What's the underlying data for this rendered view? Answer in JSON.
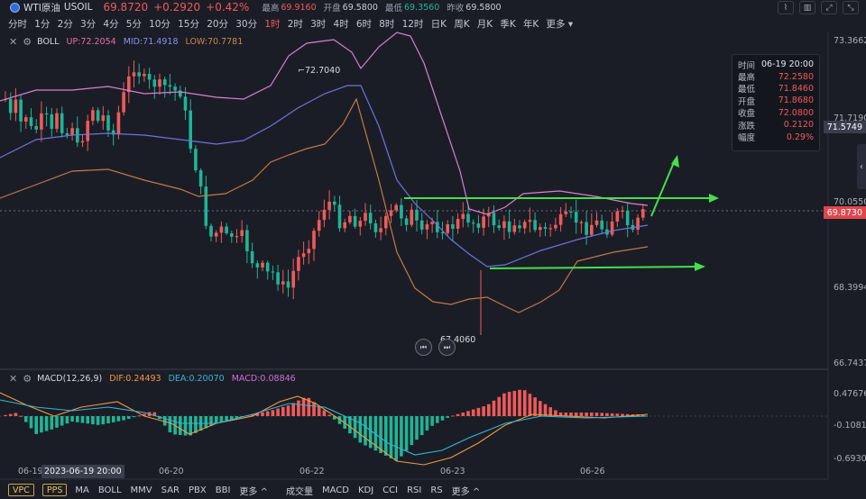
{
  "header": {
    "symbol_name": "WTI原油",
    "symbol_code": "USOIL",
    "price": "69.8720",
    "change": "+0.2920",
    "change_pct": "+0.42%",
    "stats": [
      {
        "label": "最高",
        "value": "69.9160",
        "dir": "up"
      },
      {
        "label": "开盘",
        "value": "69.5800",
        "dir": "flat"
      },
      {
        "label": "最低",
        "value": "69.3560",
        "dir": "dn"
      },
      {
        "label": "昨收",
        "value": "69.5800",
        "dir": "flat"
      }
    ],
    "icons": [
      "chart-type-icon",
      "candle-settings-icon",
      "fullscreen-icon",
      "collapse-icon"
    ]
  },
  "periods": [
    "分时",
    "1分",
    "2分",
    "3分",
    "4分",
    "5分",
    "10分",
    "15分",
    "20分",
    "30分",
    "1时",
    "2时",
    "3时",
    "4时",
    "6时",
    "8时",
    "12时",
    "日K",
    "周K",
    "月K",
    "季K",
    "年K",
    "更多"
  ],
  "active_period": "1时",
  "boll": {
    "name": "BOLL",
    "up": "UP:72.2054",
    "mid": "MID:71.4918",
    "low": "LOW:70.7781"
  },
  "macd": {
    "name": "MACD(12,26,9)",
    "dif": "DIF:0.24493",
    "dea": "DEA:0.20070",
    "macd": "MACD:0.08846"
  },
  "yaxis_main": [
    "73.3662",
    "71.7190",
    "70.0550",
    "68.3994",
    "66.7437"
  ],
  "yaxis_macd": [
    "0.47676",
    "-0.10814",
    "-0.69303"
  ],
  "current_price_tag": "69.8730",
  "crosshair_price_tag": "71.5749",
  "annotations": {
    "high": "72.7040",
    "low": "67.4060"
  },
  "info_panel": {
    "rows": [
      {
        "k": "时间",
        "v": "06-19 20:00",
        "white": true
      },
      {
        "k": "最高",
        "v": "72.2580"
      },
      {
        "k": "最低",
        "v": "71.8460"
      },
      {
        "k": "开盘",
        "v": "71.8680"
      },
      {
        "k": "收盘",
        "v": "72.0800"
      },
      {
        "k": "涨跌",
        "v": "0.2120"
      },
      {
        "k": "幅度",
        "v": "0.29%"
      }
    ]
  },
  "xaxis": {
    "labels": [
      "06-19",
      "06-20",
      "06-22",
      "06-23",
      "06-26"
    ],
    "cursor": "2023-06-19 20:00"
  },
  "bottombar": {
    "tags": [
      "VPC",
      "PPS"
    ],
    "main_indicators": [
      "MA",
      "BOLL",
      "MMV",
      "SAR",
      "PBX",
      "BBI",
      "更多"
    ],
    "sub_indicators": [
      "成交量",
      "MACD",
      "KDJ",
      "CCI",
      "RSI",
      "RS",
      "更多"
    ]
  },
  "colors": {
    "up": "#f05a5a",
    "down": "#1fb597",
    "boll_up": "#d97fd0",
    "boll_mid": "#6e72e0",
    "boll_low": "#c07a45",
    "arrow": "#44e04a",
    "dif": "#f09a3e",
    "dea": "#35b6d6"
  }
}
